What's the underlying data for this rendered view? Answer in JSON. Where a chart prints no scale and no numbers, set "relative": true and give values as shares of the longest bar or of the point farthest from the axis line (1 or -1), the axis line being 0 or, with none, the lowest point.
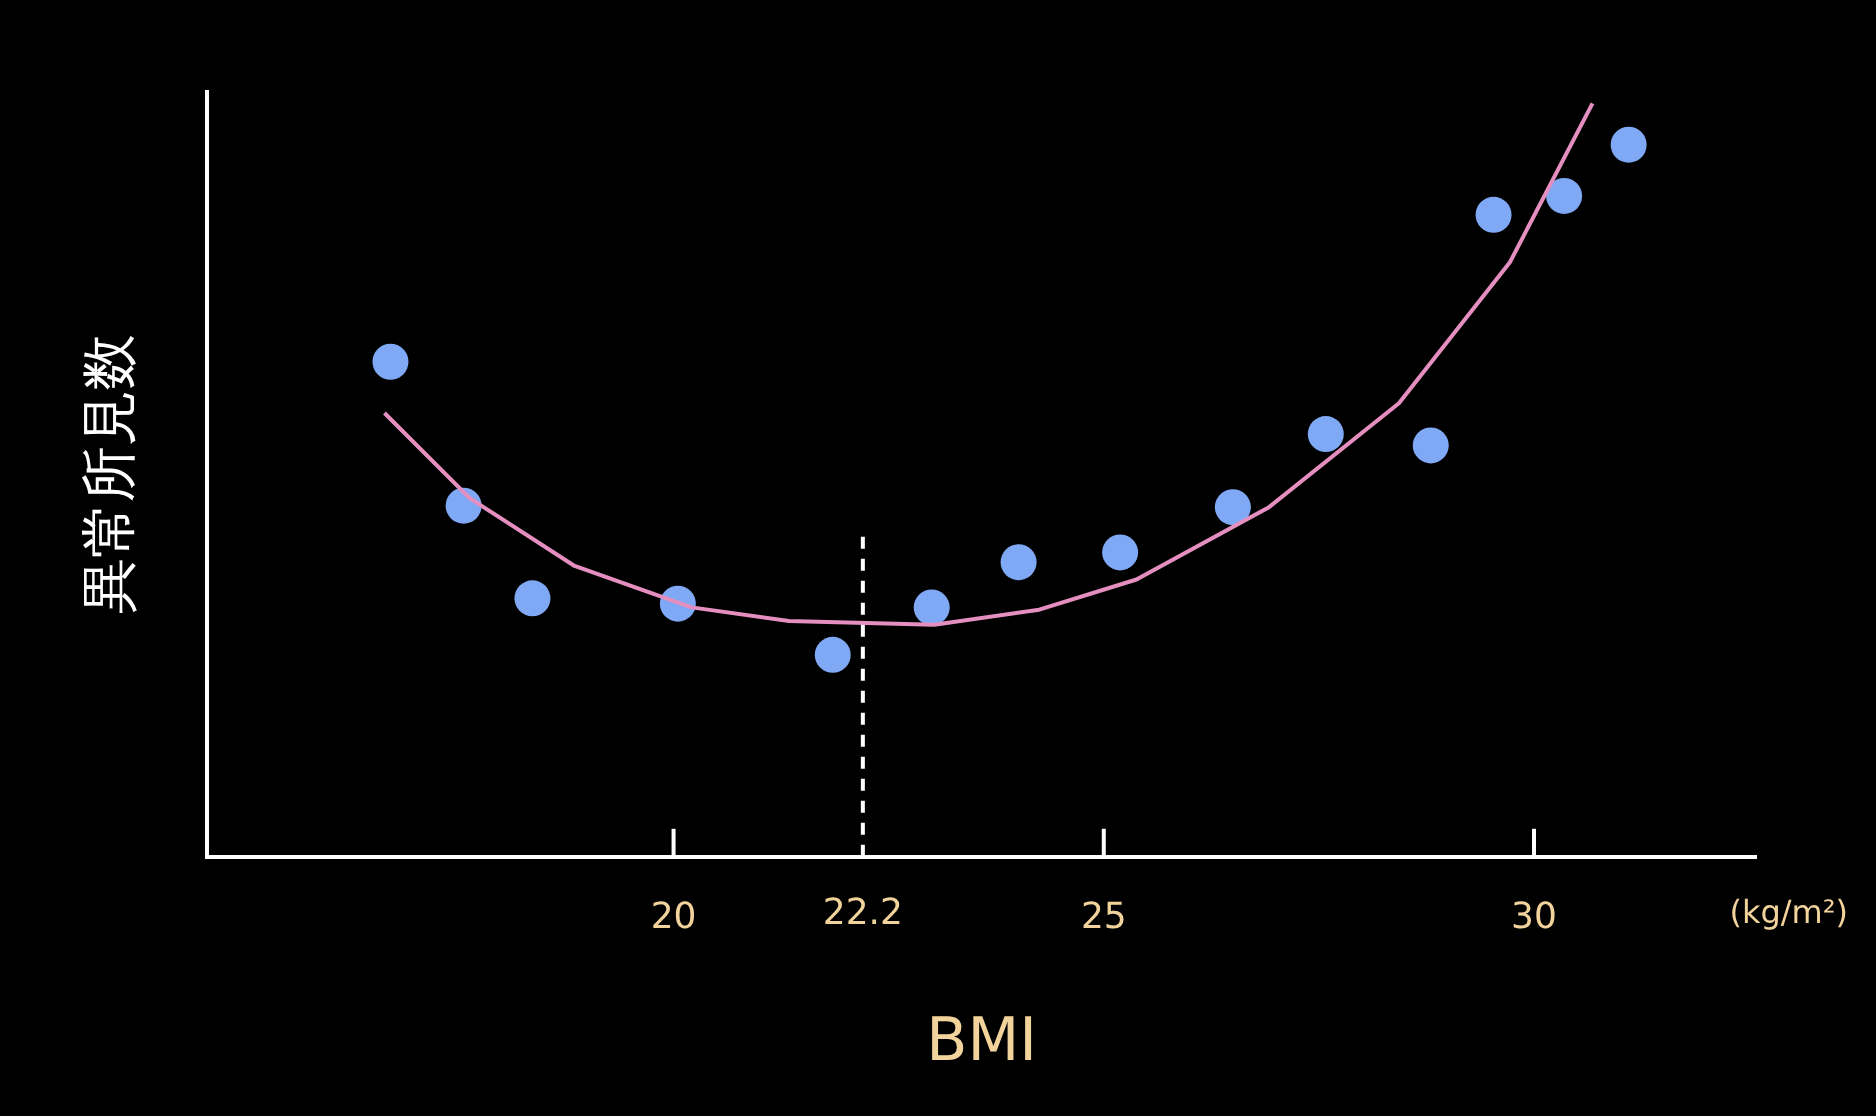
{
  "chart_data": {
    "type": "scatter",
    "relative": true,
    "xlabel": "BMI",
    "ylabel": "異常所見数",
    "xlim": [
      14.58,
      32.58
    ],
    "xticks": [
      20,
      25,
      30
    ],
    "grid": false,
    "legend": false,
    "marker": "circle",
    "annotations": [
      "(kg/m²)"
    ],
    "ref_lines": [
      {
        "axis": "x",
        "value": 22.2,
        "label": "22.2",
        "color": "#ffffff",
        "line_style": "dashed"
      }
    ],
    "series": [
      {
        "color": "#7fa8f5",
        "x": [
          16.71,
          17.56,
          18.36,
          20.05,
          21.85,
          23.0,
          24.01,
          25.19,
          26.5,
          27.58,
          28.8,
          29.53,
          30.35,
          31.1
        ],
        "values": [
          0.657,
          0.466,
          0.343,
          0.336,
          0.268,
          0.331,
          0.391,
          0.404,
          0.464,
          0.561,
          0.546,
          0.852,
          0.877,
          0.945
        ]
      },
      {
        "type": "line",
        "color": "#e58fc0",
        "marker": "none",
        "line_style": "solid",
        "x": [
          16.64,
          17.63,
          18.85,
          20.21,
          21.34,
          23.03,
          24.25,
          25.38,
          26.92,
          28.43,
          29.72,
          30.68
        ],
        "values": [
          0.589,
          0.476,
          0.386,
          0.331,
          0.313,
          0.308,
          0.328,
          0.368,
          0.464,
          0.602,
          0.789,
          1.0
        ]
      }
    ]
  }
}
